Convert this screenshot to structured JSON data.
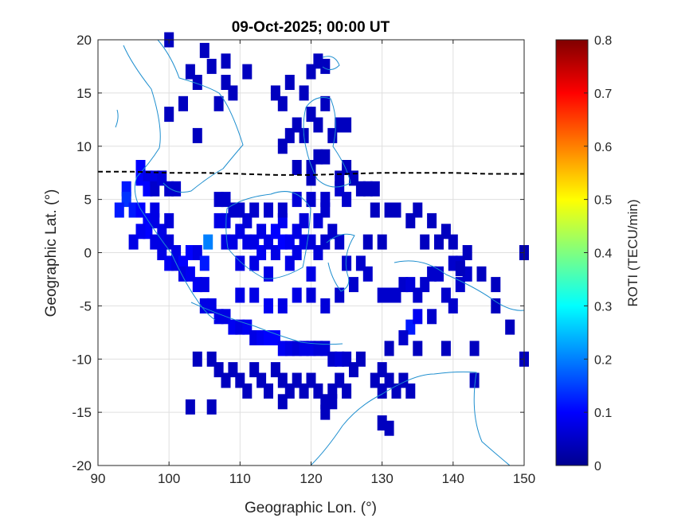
{
  "chart_data": {
    "type": "heatmap",
    "title": "09-Oct-2025; 00:00 UT",
    "xlabel": "Geographic Lon. (°)",
    "ylabel": "Geographic Lat. (°)",
    "xlim": [
      90,
      150
    ],
    "ylim": [
      -20,
      20
    ],
    "xticks": [
      90,
      100,
      110,
      120,
      130,
      140,
      150
    ],
    "xtick_labels": [
      "90",
      "100",
      "110",
      "120",
      "130",
      "140",
      "150"
    ],
    "yticks": [
      20,
      15,
      10,
      5,
      0,
      -5,
      -10,
      -15,
      -20
    ],
    "ytick_labels": [
      "20",
      "15",
      "10",
      "5",
      "0",
      "-5",
      "-10",
      "-15",
      "-20"
    ],
    "grid": true,
    "colorbar": {
      "label": "ROTI (TECU/min)",
      "range": [
        0,
        0.8
      ],
      "ticks": [
        0.8,
        0.7,
        0.6,
        0.5,
        0.4,
        0.3,
        0.2,
        0.1,
        0
      ],
      "tick_labels": [
        "0.8",
        "0.7",
        "0.6",
        "0.5",
        "0.4",
        "0.3",
        "0.2",
        "0.1",
        "0"
      ],
      "colormap": "jet"
    },
    "magnetic_equator": [
      [
        90,
        7.6
      ],
      [
        95,
        7.6
      ],
      [
        100,
        7.5
      ],
      [
        105,
        7.5
      ],
      [
        110,
        7.4
      ],
      [
        115,
        7.3
      ],
      [
        120,
        7.3
      ],
      [
        125,
        7.4
      ],
      [
        130,
        7.5
      ],
      [
        135,
        7.5
      ],
      [
        140,
        7.5
      ],
      [
        145,
        7.4
      ],
      [
        150,
        7.4
      ]
    ],
    "points": [
      [
        94,
        6,
        0.12
      ],
      [
        94,
        5,
        0.14
      ],
      [
        95,
        4,
        0.12
      ],
      [
        96,
        8,
        0.1
      ],
      [
        96,
        7,
        0.1
      ],
      [
        97,
        7,
        0.08
      ],
      [
        97,
        6,
        0.1
      ],
      [
        98,
        7,
        0.08
      ],
      [
        98,
        6,
        0.06
      ],
      [
        99,
        7,
        0.07
      ],
      [
        100,
        6,
        0.06
      ],
      [
        101,
        6,
        0.06
      ],
      [
        96,
        4,
        0.1
      ],
      [
        97,
        3,
        0.1
      ],
      [
        97,
        2,
        0.1
      ],
      [
        98,
        4,
        0.08
      ],
      [
        98,
        3,
        0.08
      ],
      [
        98,
        1,
        0.08
      ],
      [
        99,
        2,
        0.08
      ],
      [
        99,
        1,
        0.08
      ],
      [
        100,
        3,
        0.07
      ],
      [
        100,
        1,
        0.07
      ],
      [
        99,
        0,
        0.08
      ],
      [
        100,
        -1,
        0.09
      ],
      [
        101,
        0,
        0.08
      ],
      [
        101,
        -1,
        0.08
      ],
      [
        102,
        -1,
        0.1
      ],
      [
        102,
        -2,
        0.08
      ],
      [
        103,
        -2,
        0.09
      ],
      [
        103,
        0,
        0.1
      ],
      [
        104,
        0,
        0.08
      ],
      [
        105,
        -1,
        0.12
      ],
      [
        104,
        -3,
        0.09
      ],
      [
        105,
        -3,
        0.08
      ],
      [
        105,
        -5,
        0.08
      ],
      [
        106,
        -5,
        0.08
      ],
      [
        107,
        -6,
        0.08
      ],
      [
        108,
        -6,
        0.08
      ],
      [
        109,
        -7,
        0.09
      ],
      [
        110,
        -7,
        0.08
      ],
      [
        111,
        -7,
        0.09
      ],
      [
        112,
        -8,
        0.08
      ],
      [
        113,
        -8,
        0.09
      ],
      [
        114,
        -8,
        0.1
      ],
      [
        115,
        -8,
        0.1
      ],
      [
        116,
        -9,
        0.09
      ],
      [
        117,
        -9,
        0.08
      ],
      [
        118,
        -9,
        0.07
      ],
      [
        119,
        -9,
        0.08
      ],
      [
        120,
        -9,
        0.08
      ],
      [
        121,
        -9,
        0.07
      ],
      [
        122,
        -9,
        0.07
      ],
      [
        123,
        -10,
        0.06
      ],
      [
        124,
        -10,
        0.07
      ],
      [
        125,
        -10,
        0.06
      ],
      [
        105.5,
        1,
        0.2
      ],
      [
        107,
        3,
        0.08
      ],
      [
        108,
        3,
        0.08
      ],
      [
        108,
        1,
        0.08
      ],
      [
        109,
        1,
        0.08
      ],
      [
        109,
        4,
        0.06
      ],
      [
        110,
        2,
        0.08
      ],
      [
        110,
        -1,
        0.08
      ],
      [
        111,
        1,
        0.08
      ],
      [
        111,
        3,
        0.07
      ],
      [
        112,
        1,
        0.08
      ],
      [
        112,
        -1,
        0.08
      ],
      [
        113,
        2,
        0.08
      ],
      [
        113,
        0,
        0.09
      ],
      [
        114,
        1,
        0.08
      ],
      [
        114,
        -2,
        0.08
      ],
      [
        115,
        2,
        0.1
      ],
      [
        115,
        0,
        0.08
      ],
      [
        116,
        3,
        0.09
      ],
      [
        116,
        1,
        0.1
      ],
      [
        117,
        1,
        0.09
      ],
      [
        117,
        -1,
        0.08
      ],
      [
        118,
        2,
        0.08
      ],
      [
        118,
        0,
        0.08
      ],
      [
        119,
        3,
        0.07
      ],
      [
        119,
        1,
        0.08
      ],
      [
        120,
        1,
        0.07
      ],
      [
        120,
        -2,
        0.08
      ],
      [
        121,
        3,
        0.07
      ],
      [
        121,
        0,
        0.07
      ],
      [
        122,
        4,
        0.06
      ],
      [
        122,
        1,
        0.06
      ],
      [
        123,
        2,
        0.06
      ],
      [
        124,
        1,
        0.06
      ],
      [
        110,
        -4,
        0.08
      ],
      [
        112,
        -4,
        0.08
      ],
      [
        114,
        -5,
        0.09
      ],
      [
        116,
        -5,
        0.08
      ],
      [
        118,
        -4,
        0.08
      ],
      [
        120,
        -4,
        0.07
      ],
      [
        122,
        -5,
        0.07
      ],
      [
        124,
        -4,
        0.06
      ],
      [
        126,
        -3,
        0.06
      ],
      [
        128,
        -2,
        0.06
      ],
      [
        125,
        -1,
        0.06
      ],
      [
        127,
        -1,
        0.06
      ],
      [
        130,
        -4,
        0.06
      ],
      [
        131,
        -4,
        0.06
      ],
      [
        132,
        -4,
        0.06
      ],
      [
        133,
        -3,
        0.06
      ],
      [
        134,
        -3,
        0.07
      ],
      [
        135,
        -4,
        0.06
      ],
      [
        136,
        -3,
        0.06
      ],
      [
        137,
        -2,
        0.06
      ],
      [
        138,
        -2,
        0.06
      ],
      [
        139,
        -4,
        0.06
      ],
      [
        140,
        -5,
        0.06
      ],
      [
        141,
        -3,
        0.06
      ],
      [
        142,
        -2,
        0.06
      ],
      [
        134,
        -7,
        0.12
      ],
      [
        135,
        -6,
        0.09
      ],
      [
        137,
        -6,
        0.06
      ],
      [
        133,
        -8,
        0.06
      ],
      [
        141,
        -1,
        0.06
      ],
      [
        140,
        -1,
        0.06
      ],
      [
        141,
        -1.5,
        0.05
      ],
      [
        107,
        5,
        0.06
      ],
      [
        108,
        5,
        0.06
      ],
      [
        110,
        4,
        0.06
      ],
      [
        112,
        4,
        0.06
      ],
      [
        114,
        4,
        0.06
      ],
      [
        116,
        4,
        0.06
      ],
      [
        118,
        5,
        0.07
      ],
      [
        120,
        5,
        0.06
      ],
      [
        122,
        5,
        0.06
      ],
      [
        124,
        6,
        0.06
      ],
      [
        125,
        5,
        0.06
      ],
      [
        127,
        6,
        0.05
      ],
      [
        128,
        6,
        0.05
      ],
      [
        129,
        4,
        0.05
      ],
      [
        131,
        4,
        0.05
      ],
      [
        132,
        4,
        0.05
      ],
      [
        134,
        3,
        0.05
      ],
      [
        136,
        1,
        0.05
      ],
      [
        138,
        1,
        0.05
      ],
      [
        140,
        1,
        0.05
      ],
      [
        142,
        0,
        0.05
      ],
      [
        150,
        0,
        0.04
      ],
      [
        146,
        -3,
        0.05
      ],
      [
        144,
        -2,
        0.05
      ],
      [
        148,
        -7,
        0.05
      ],
      [
        150,
        -10,
        0.05
      ],
      [
        131,
        -9,
        0.05
      ],
      [
        135,
        -9,
        0.05
      ],
      [
        139,
        -9,
        0.05
      ],
      [
        143,
        -9,
        0.05
      ],
      [
        146,
        -5,
        0.05
      ],
      [
        143,
        -12,
        0.05
      ],
      [
        128,
        1,
        0.05
      ],
      [
        130,
        1,
        0.05
      ],
      [
        107,
        -11,
        0.05
      ],
      [
        108,
        -12,
        0.05
      ],
      [
        109,
        -11,
        0.05
      ],
      [
        110,
        -12,
        0.05
      ],
      [
        111,
        -13,
        0.05
      ],
      [
        112,
        -11,
        0.05
      ],
      [
        113,
        -12,
        0.05
      ],
      [
        114,
        -13,
        0.05
      ],
      [
        115,
        -11,
        0.05
      ],
      [
        116,
        -12,
        0.05
      ],
      [
        117,
        -13,
        0.05
      ],
      [
        118,
        -12,
        0.05
      ],
      [
        119,
        -13,
        0.05
      ],
      [
        120,
        -12,
        0.05
      ],
      [
        121,
        -13,
        0.05
      ],
      [
        123,
        -13,
        0.05
      ],
      [
        124,
        -12,
        0.05
      ],
      [
        125,
        -13,
        0.05
      ],
      [
        126,
        -11,
        0.05
      ],
      [
        129,
        -12,
        0.05
      ],
      [
        130,
        -13,
        0.05
      ],
      [
        131,
        -12,
        0.05
      ],
      [
        132,
        -13,
        0.05
      ],
      [
        133,
        -12,
        0.05
      ],
      [
        134,
        -13,
        0.05
      ],
      [
        116,
        -14,
        0.05
      ],
      [
        122,
        -14,
        0.05
      ],
      [
        123,
        -14,
        0.05
      ],
      [
        104,
        -10,
        0.05
      ],
      [
        106,
        -10,
        0.05
      ],
      [
        127,
        -10,
        0.05
      ],
      [
        130,
        -11,
        0.05
      ],
      [
        103,
        -14.5,
        0.05
      ],
      [
        106,
        -14.5,
        0.05
      ],
      [
        122,
        -15,
        0.05
      ],
      [
        130,
        -16,
        0.05
      ],
      [
        131,
        -16.5,
        0.05
      ],
      [
        100,
        20,
        0.05
      ],
      [
        105,
        19,
        0.05
      ],
      [
        106,
        17.5,
        0.05
      ],
      [
        108,
        18,
        0.05
      ],
      [
        108,
        16,
        0.05
      ],
      [
        109,
        15,
        0.05
      ],
      [
        111,
        17,
        0.05
      ],
      [
        103,
        17,
        0.05
      ],
      [
        104,
        16,
        0.05
      ],
      [
        102,
        14,
        0.05
      ],
      [
        100,
        13,
        0.05
      ],
      [
        107,
        14,
        0.05
      ],
      [
        104,
        11,
        0.05
      ],
      [
        115,
        15,
        0.05
      ],
      [
        116,
        14,
        0.05
      ],
      [
        117,
        16,
        0.05
      ],
      [
        118,
        12,
        0.05
      ],
      [
        119,
        15,
        0.05
      ],
      [
        120,
        17,
        0.05
      ],
      [
        121,
        18,
        0.05
      ],
      [
        122,
        17.5,
        0.05
      ],
      [
        120,
        13,
        0.05
      ],
      [
        121,
        12,
        0.05
      ],
      [
        122,
        14,
        0.05
      ],
      [
        123,
        11,
        0.05
      ],
      [
        124,
        12,
        0.05
      ],
      [
        125,
        12,
        0.05
      ],
      [
        119,
        11,
        0.05
      ],
      [
        117,
        11,
        0.05
      ],
      [
        116,
        10,
        0.05
      ],
      [
        118,
        8,
        0.05
      ],
      [
        120,
        8,
        0.05
      ],
      [
        121,
        9,
        0.05
      ],
      [
        122,
        9,
        0.05
      ],
      [
        124,
        7,
        0.05
      ],
      [
        126,
        7,
        0.05
      ],
      [
        120,
        7,
        0.05
      ],
      [
        125,
        8,
        0.05
      ],
      [
        129,
        6,
        0.05
      ],
      [
        135,
        4,
        0.05
      ],
      [
        137,
        3,
        0.05
      ],
      [
        139,
        2,
        0.05
      ],
      [
        93,
        4,
        0.12
      ],
      [
        95,
        1,
        0.08
      ],
      [
        96,
        2,
        0.09
      ]
    ]
  }
}
